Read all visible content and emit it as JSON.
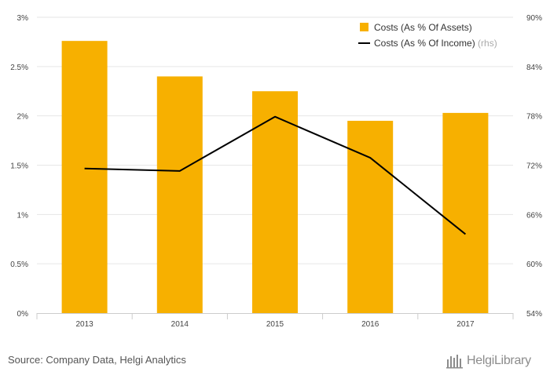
{
  "chart_data": {
    "type": "bar",
    "categories": [
      "2013",
      "2014",
      "2015",
      "2016",
      "2017"
    ],
    "series": [
      {
        "name": "Costs (As % Of Assets)",
        "type": "bar",
        "axis": "left",
        "values": [
          2.76,
          2.4,
          2.25,
          1.95,
          2.03
        ],
        "color": "#F7B000"
      },
      {
        "name": "Costs (As % Of Income)",
        "name_suffix": "(rhs)",
        "type": "line",
        "axis": "right",
        "values": [
          71.6,
          71.3,
          77.9,
          72.9,
          63.6
        ],
        "color": "#000000"
      }
    ],
    "y_left": {
      "ylim": [
        0,
        3
      ],
      "ticks": [
        0,
        0.5,
        1,
        1.5,
        2,
        2.5,
        3
      ],
      "tick_labels": [
        "0%",
        "0.5%",
        "1%",
        "1.5%",
        "2%",
        "2.5%",
        "3%"
      ]
    },
    "y_right": {
      "ylim": [
        54,
        90
      ],
      "ticks": [
        54,
        60,
        66,
        72,
        78,
        84,
        90
      ],
      "tick_labels": [
        "54%",
        "60%",
        "66%",
        "72%",
        "78%",
        "84%",
        "90%"
      ]
    },
    "grid": true,
    "legend": "top-right"
  },
  "source": "Source: Company Data, Helgi Analytics",
  "brand": "HelgiLibrary"
}
